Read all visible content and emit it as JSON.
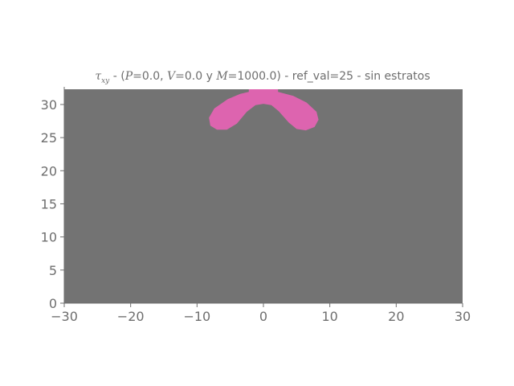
{
  "chart_data": {
    "type": "heatmap",
    "title": {
      "sym": "τ",
      "sub": "xy",
      "part1": " - (",
      "p_var": "P",
      "part2": "=0.0, ",
      "v_var": "V",
      "part3": "=0.0  y ",
      "m_var": "M",
      "part4": "=1000.0) - ref_val=25 - sin estratos"
    },
    "xlim": [
      -30,
      30
    ],
    "ylim": [
      0,
      32.3
    ],
    "xticks": [
      -30,
      -20,
      -10,
      0,
      10,
      20,
      30
    ],
    "yticks": [
      0,
      5,
      10,
      15,
      20,
      25,
      30
    ],
    "xtick_labels": [
      "−30",
      "−20",
      "−10",
      "0",
      "10",
      "20",
      "30"
    ],
    "ytick_labels": [
      "0",
      "5",
      "10",
      "15",
      "20",
      "25",
      "30"
    ],
    "background_color": "#737373",
    "highlight_color": "#dd64af",
    "regions": [
      {
        "name": "highlighted-lobes",
        "polygon": [
          [
            -2.2,
            32.3
          ],
          [
            2.2,
            32.3
          ],
          [
            2.2,
            31.9
          ],
          [
            4.5,
            31.3
          ],
          [
            6.5,
            30.3
          ],
          [
            8.0,
            28.9
          ],
          [
            8.3,
            27.7
          ],
          [
            7.7,
            26.6
          ],
          [
            6.4,
            26.1
          ],
          [
            5.0,
            26.3
          ],
          [
            3.8,
            27.3
          ],
          [
            2.3,
            29.0
          ],
          [
            1.2,
            29.9
          ],
          [
            0.0,
            30.1
          ],
          [
            -1.2,
            29.9
          ],
          [
            -2.5,
            28.9
          ],
          [
            -4.0,
            27.1
          ],
          [
            -5.5,
            26.2
          ],
          [
            -7.0,
            26.2
          ],
          [
            -8.0,
            26.8
          ],
          [
            -8.2,
            28.0
          ],
          [
            -7.4,
            29.4
          ],
          [
            -5.4,
            30.8
          ],
          [
            -3.5,
            31.6
          ],
          [
            -2.2,
            31.9
          ]
        ]
      }
    ]
  }
}
